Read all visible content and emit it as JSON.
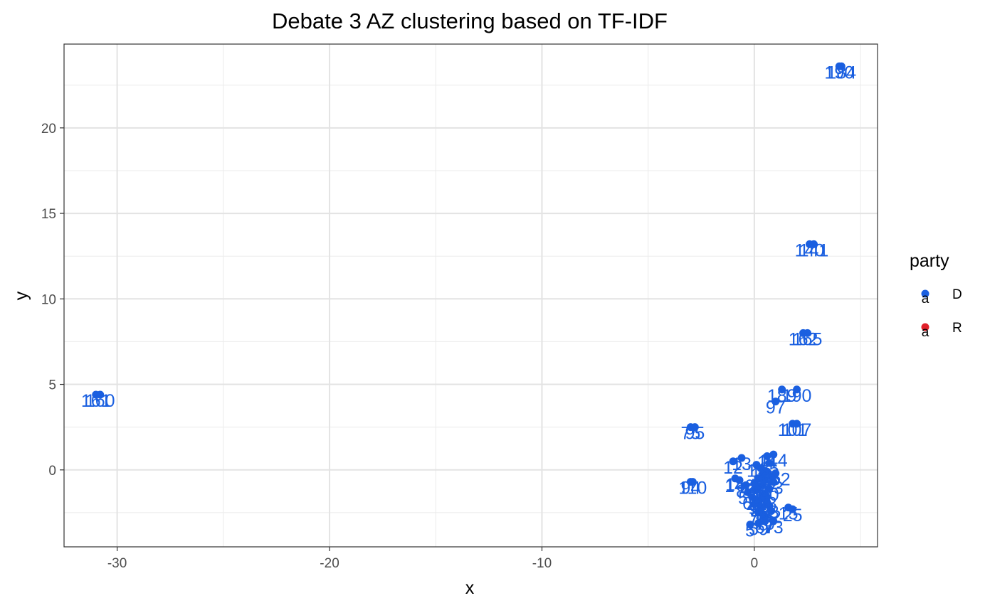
{
  "chart_data": {
    "type": "scatter",
    "title": "Debate 3 AZ clustering based on TF-IDF",
    "xlabel": "x",
    "ylabel": "y",
    "xlim": [
      -32.5,
      5.8
    ],
    "ylim": [
      -4.5,
      24.9
    ],
    "x_ticks": [
      -30,
      -20,
      -10,
      0
    ],
    "y_ticks": [
      0,
      5,
      10,
      15,
      20
    ],
    "x_tick_labels": [
      "-30",
      "-20",
      "-10",
      "0"
    ],
    "y_tick_labels": [
      "0",
      "5",
      "10",
      "15",
      "20"
    ],
    "grid": true,
    "legend": {
      "title": "party",
      "placement": "right",
      "entries": [
        {
          "label": "D",
          "color": "#1a5fe0"
        },
        {
          "label": "R",
          "color": "#e0202a"
        }
      ]
    },
    "series": [
      {
        "name": "D",
        "color": "#1a5fe0",
        "points": [
          {
            "x": 4.0,
            "y": 23.6,
            "label": "190"
          },
          {
            "x": 4.1,
            "y": 23.6,
            "label": "184"
          },
          {
            "x": 2.8,
            "y": 13.2,
            "label": "141"
          },
          {
            "x": 2.6,
            "y": 13.2,
            "label": "140"
          },
          {
            "x": 2.3,
            "y": 8.0,
            "label": "162"
          },
          {
            "x": 2.5,
            "y": 8.0,
            "label": "165"
          },
          {
            "x": -31.0,
            "y": 4.4,
            "label": "161"
          },
          {
            "x": -30.8,
            "y": 4.4,
            "label": "160"
          },
          {
            "x": 1.3,
            "y": 4.7,
            "label": "189"
          },
          {
            "x": 2.0,
            "y": 4.7,
            "label": "190"
          },
          {
            "x": 1.0,
            "y": 4.0,
            "label": "97"
          },
          {
            "x": 1.8,
            "y": 2.7,
            "label": "101"
          },
          {
            "x": 2.0,
            "y": 2.7,
            "label": "107"
          },
          {
            "x": -3.0,
            "y": 2.5,
            "label": "75"
          },
          {
            "x": -2.8,
            "y": 2.5,
            "label": "95"
          },
          {
            "x": -3.0,
            "y": -0.7,
            "label": "94"
          },
          {
            "x": -2.9,
            "y": -0.7,
            "label": "110"
          },
          {
            "x": -1.0,
            "y": 0.5,
            "label": "12"
          },
          {
            "x": -0.6,
            "y": 0.7,
            "label": "13"
          },
          {
            "x": 0.9,
            "y": 0.9,
            "label": "114"
          },
          {
            "x": 0.6,
            "y": 0.8,
            "label": "14"
          },
          {
            "x": 1.0,
            "y": -0.2,
            "label": "152"
          },
          {
            "x": 0.8,
            "y": -0.4,
            "label": "62"
          },
          {
            "x": -0.9,
            "y": -0.5,
            "label": "14"
          },
          {
            "x": -0.7,
            "y": -0.6,
            "label": "146"
          },
          {
            "x": 0.2,
            "y": -0.5,
            "label": "1"
          },
          {
            "x": 0.4,
            "y": -0.9,
            "label": "2"
          },
          {
            "x": 0.1,
            "y": -1.2,
            "label": "3"
          },
          {
            "x": 0.5,
            "y": -1.4,
            "label": "5"
          },
          {
            "x": 0.3,
            "y": -1.7,
            "label": "6"
          },
          {
            "x": 0.6,
            "y": -1.9,
            "label": "8"
          },
          {
            "x": 0.0,
            "y": -2.0,
            "label": "9"
          },
          {
            "x": 0.7,
            "y": -2.1,
            "label": "23"
          },
          {
            "x": 1.6,
            "y": -2.2,
            "label": "15"
          },
          {
            "x": 1.8,
            "y": -2.3,
            "label": "25"
          },
          {
            "x": 0.4,
            "y": -2.6,
            "label": "33"
          },
          {
            "x": 0.2,
            "y": -3.1,
            "label": "59"
          },
          {
            "x": 0.5,
            "y": -3.0,
            "label": "67"
          },
          {
            "x": 0.9,
            "y": -3.0,
            "label": "73"
          },
          {
            "x": -0.2,
            "y": -3.2,
            "label": "5"
          },
          {
            "x": 0.1,
            "y": 0.3,
            "label": "17"
          },
          {
            "x": 0.3,
            "y": 0.1,
            "label": "19"
          },
          {
            "x": 0.6,
            "y": -0.1,
            "label": "22"
          },
          {
            "x": 0.0,
            "y": -0.8,
            "label": "28"
          },
          {
            "x": 0.2,
            "y": -1.0,
            "label": "30"
          },
          {
            "x": 0.5,
            "y": -0.6,
            "label": "31"
          },
          {
            "x": 0.7,
            "y": -1.1,
            "label": "40"
          },
          {
            "x": 0.4,
            "y": -1.5,
            "label": "41"
          },
          {
            "x": 0.6,
            "y": -1.6,
            "label": "43"
          },
          {
            "x": 0.1,
            "y": -1.8,
            "label": "44"
          },
          {
            "x": 0.3,
            "y": -2.2,
            "label": "48"
          },
          {
            "x": 0.8,
            "y": -2.4,
            "label": "52"
          },
          {
            "x": -0.3,
            "y": -1.3,
            "label": "56"
          },
          {
            "x": -0.1,
            "y": -1.6,
            "label": "60"
          },
          {
            "x": 0.9,
            "y": -0.7,
            "label": "63"
          },
          {
            "x": 0.5,
            "y": -2.8,
            "label": "70"
          },
          {
            "x": 0.2,
            "y": -2.5,
            "label": "78"
          },
          {
            "x": 0.4,
            "y": -0.3,
            "label": "81"
          },
          {
            "x": 0.7,
            "y": 0.4,
            "label": "85"
          },
          {
            "x": -0.4,
            "y": -0.9,
            "label": "88"
          }
        ]
      },
      {
        "name": "R",
        "color": "#e0202a",
        "points": []
      }
    ]
  }
}
